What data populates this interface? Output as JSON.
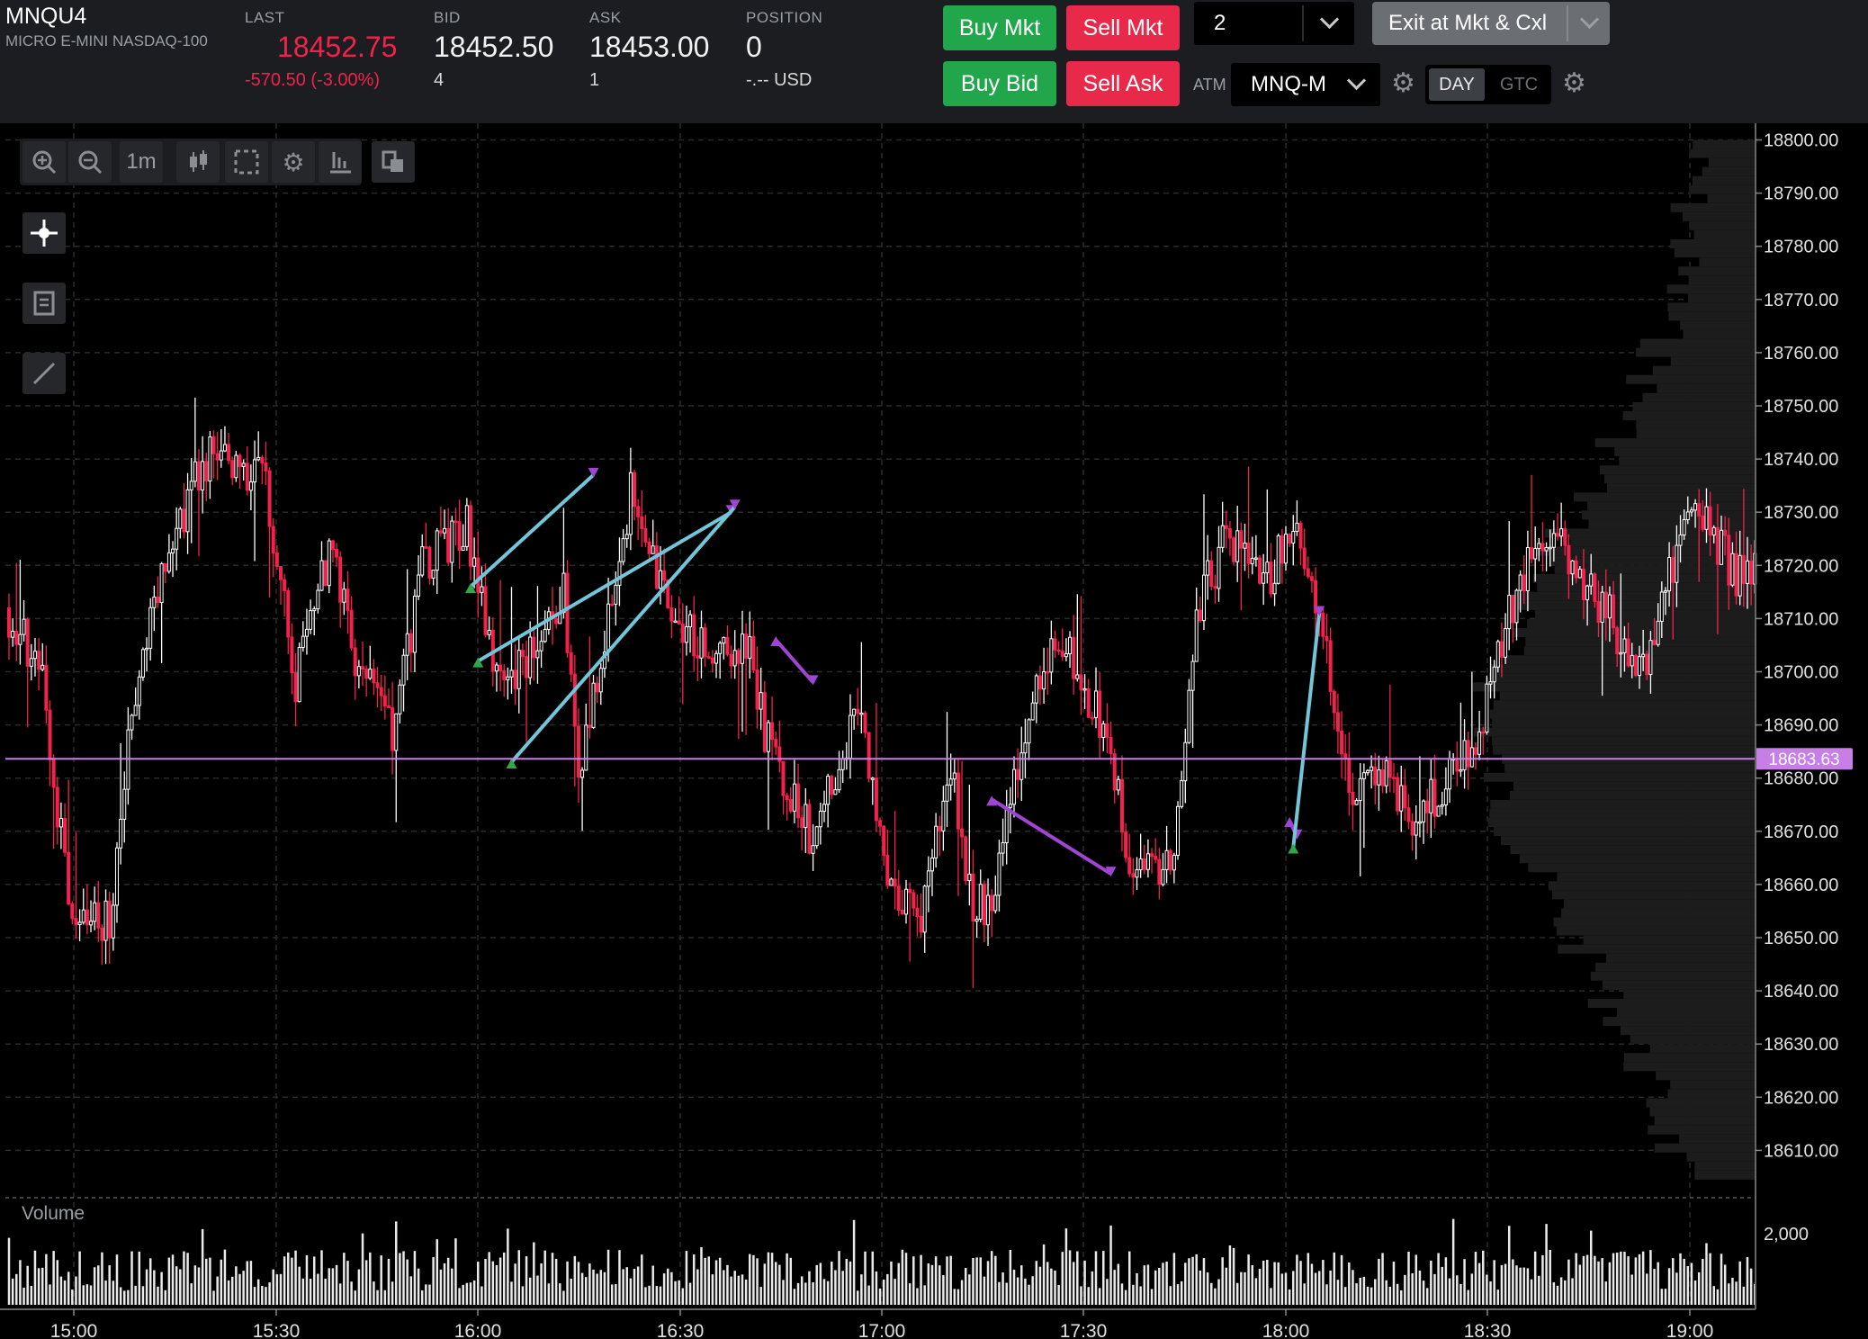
{
  "instrument": {
    "symbol": "MNQU4",
    "name": "MICRO E-MINI NASDAQ-100"
  },
  "quote": {
    "last_label": "LAST",
    "last": "18452.75",
    "change": "-570.50 (-3.00%)",
    "bid_label": "BID",
    "bid": "18452.50",
    "bid_size": "4",
    "ask_label": "ASK",
    "ask": "18453.00",
    "ask_size": "1",
    "position_label": "POSITION",
    "position": "0",
    "pnl": "-.-- USD"
  },
  "order_panel": {
    "buy_mkt": "Buy Mkt",
    "sell_mkt": "Sell Mkt",
    "buy_bid": "Buy Bid",
    "sell_ask": "Sell Ask",
    "quantity": "2",
    "exit_label": "Exit at Mkt & Cxl",
    "atm_label": "ATM",
    "atm_value": "MNQ-M",
    "tif_day": "DAY",
    "tif_gtc": "GTC"
  },
  "toolbar": {
    "timeframe": "1m"
  },
  "icons": [
    "zoom-in-icon",
    "zoom-out-icon",
    "candlestick-icon",
    "marquee-select-icon",
    "gear-icon",
    "bars-icon",
    "layout-icon",
    "crosshair-icon",
    "notes-icon",
    "draw-line-icon",
    "chevron-down-icon"
  ],
  "colors": {
    "up": "#ffffff",
    "down": "#f2224c",
    "trend_blue": "#73c6da",
    "trend_purple": "#9f44d3",
    "last_line": "#c77ee6",
    "buy": "#22a64b",
    "sell": "#e8294a"
  },
  "chart_data": {
    "type": "candlestick",
    "ylim": [
      18600,
      18802
    ],
    "y_ticks": [
      "18800.00",
      "18790.00",
      "18780.00",
      "18770.00",
      "18760.00",
      "18750.00",
      "18740.00",
      "18730.00",
      "18720.00",
      "18710.00",
      "18700.00",
      "18690.00",
      "18680.00",
      "18670.00",
      "18660.00",
      "18650.00",
      "18640.00",
      "18630.00",
      "18620.00",
      "18610.00"
    ],
    "x_ticks": [
      "15:00",
      "15:30",
      "16:00",
      "16:30",
      "17:00",
      "17:30",
      "18:00",
      "18:30",
      "19:00"
    ],
    "price_line": {
      "value": 18683.63,
      "label": "18683.63"
    },
    "volume_label": "Volume",
    "volume_tick": "2,000",
    "waypoints": [
      [
        0,
        18712
      ],
      [
        10,
        18700
      ],
      [
        18,
        18650
      ],
      [
        28,
        18654
      ],
      [
        36,
        18703
      ],
      [
        46,
        18728
      ],
      [
        56,
        18742
      ],
      [
        70,
        18735
      ],
      [
        78,
        18698
      ],
      [
        88,
        18725
      ],
      [
        94,
        18702
      ],
      [
        104,
        18688
      ],
      [
        112,
        18720
      ],
      [
        124,
        18727
      ],
      [
        134,
        18695
      ],
      [
        144,
        18708
      ],
      [
        150,
        18716
      ],
      [
        154,
        18679
      ],
      [
        168,
        18733
      ],
      [
        176,
        18718
      ],
      [
        178,
        18713
      ],
      [
        186,
        18706
      ],
      [
        200,
        18705
      ],
      [
        204,
        18688
      ],
      [
        216,
        18670
      ],
      [
        230,
        18694
      ],
      [
        236,
        18664
      ],
      [
        246,
        18653
      ],
      [
        254,
        18684
      ],
      [
        258,
        18658
      ],
      [
        264,
        18656
      ],
      [
        276,
        18694
      ],
      [
        282,
        18708
      ],
      [
        296,
        18688
      ],
      [
        302,
        18663
      ],
      [
        314,
        18665
      ],
      [
        320,
        18712
      ],
      [
        328,
        18725
      ],
      [
        340,
        18718
      ],
      [
        346,
        18728
      ],
      [
        352,
        18713
      ],
      [
        362,
        18675
      ],
      [
        370,
        18682
      ],
      [
        378,
        18672
      ],
      [
        396,
        18687
      ],
      [
        404,
        18712
      ],
      [
        414,
        18727
      ],
      [
        432,
        18709
      ],
      [
        440,
        18700
      ],
      [
        454,
        18734
      ],
      [
        464,
        18718
      ]
    ],
    "trend_lines": [
      {
        "color": "trend_blue",
        "points": [
          [
            18716,
            18737
          ]
        ],
        "x": [
          124,
          157
        ]
      },
      {
        "color": "trend_blue",
        "points": [
          [
            18702,
            18730
          ]
        ],
        "x": [
          126,
          194
        ]
      },
      {
        "color": "trend_blue",
        "points": [
          [
            18683,
            18731
          ]
        ],
        "x": [
          135,
          195
        ]
      },
      {
        "color": "trend_purple",
        "points": [
          [
            18706,
            18698
          ]
        ],
        "x": [
          206,
          216
        ]
      },
      {
        "color": "trend_purple",
        "points": [
          [
            18676,
            18662
          ]
        ],
        "x": [
          264,
          296
        ]
      },
      {
        "color": "trend_purple",
        "points": [
          [
            18672,
            18669
          ]
        ],
        "x": [
          344,
          346
        ]
      },
      {
        "color": "trend_blue",
        "points": [
          [
            18667,
            18711
          ]
        ],
        "x": [
          345,
          352
        ]
      }
    ]
  }
}
